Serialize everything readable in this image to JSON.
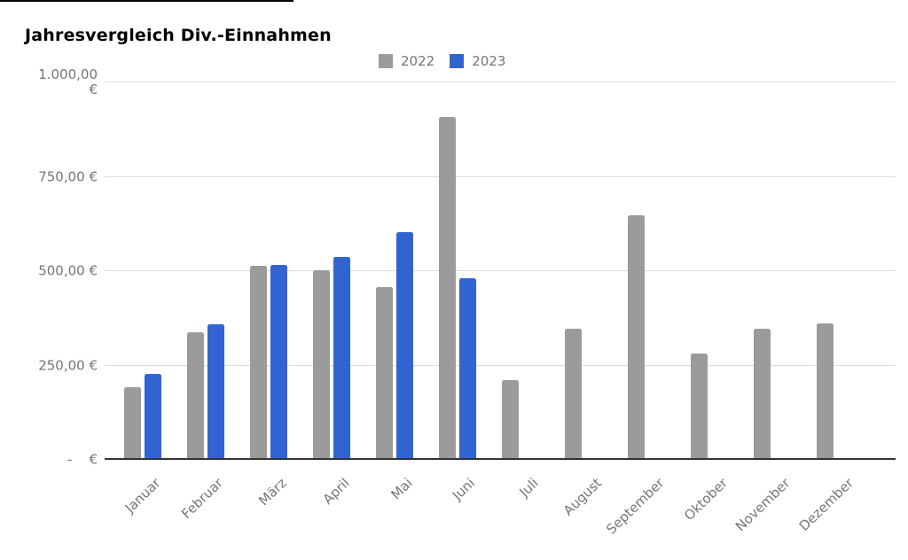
{
  "page": {
    "title": "Jahresvergleich Div.-Einnahmen"
  },
  "chart_data": {
    "type": "bar",
    "title": "Jahresvergleich Div.-Einnahmen",
    "categories": [
      "Januar",
      "Februar",
      "März",
      "April",
      "Mai",
      "Juni",
      "Juli",
      "August",
      "September",
      "Oktober",
      "November",
      "Dezember"
    ],
    "series": [
      {
        "name": "2022",
        "color": "#9b9b9b",
        "values": [
          190,
          335,
          512,
          500,
          455,
          905,
          210,
          345,
          645,
          280,
          345,
          360
        ]
      },
      {
        "name": "2023",
        "color": "#3164d2",
        "values": [
          225,
          358,
          514,
          535,
          600,
          478,
          null,
          null,
          null,
          null,
          null,
          null
        ]
      }
    ],
    "ylim": [
      0,
      1000
    ],
    "yticks": [
      {
        "value": 0,
        "label": "-    €"
      },
      {
        "value": 250,
        "label": "250,00 €"
      },
      {
        "value": 500,
        "label": "500,00 €"
      },
      {
        "value": 750,
        "label": "750,00 €"
      },
      {
        "value": 1000,
        "label": "1.000,00\n€"
      }
    ],
    "currency": "EUR",
    "legend_position": "top",
    "grid": true,
    "axis_text_color": "#757575",
    "gridline_color": "#dcdcdc"
  }
}
